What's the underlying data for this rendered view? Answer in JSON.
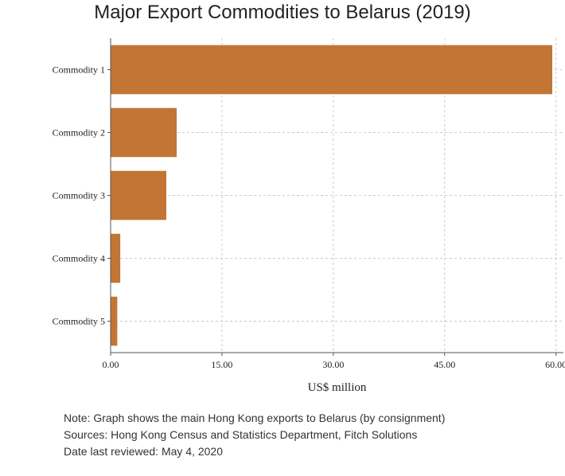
{
  "chart_data": {
    "type": "bar",
    "orientation": "horizontal",
    "title": "Major Export Commodities to Belarus (2019)",
    "xlabel": "US$ million",
    "ylabel": "",
    "categories": [
      "Commodity 1",
      "Commodity 2",
      "Commodity 3",
      "Commodity 4",
      "Commodity 5"
    ],
    "values": [
      59.5,
      8.9,
      7.5,
      1.3,
      0.9
    ],
    "xlim": [
      0,
      61
    ],
    "xticks": [
      "0.00",
      "15.00",
      "30.00",
      "45.00",
      "60.00"
    ],
    "xtick_values": [
      0,
      15,
      30,
      45,
      60
    ],
    "grid": true,
    "bar_color": "#c27535"
  },
  "notes": [
    "Note: Graph shows the main Hong Kong exports to Belarus (by consignment)",
    "Sources: Hong Kong Census and Statistics Department, Fitch Solutions",
    "Date last reviewed: May 4, 2020"
  ]
}
